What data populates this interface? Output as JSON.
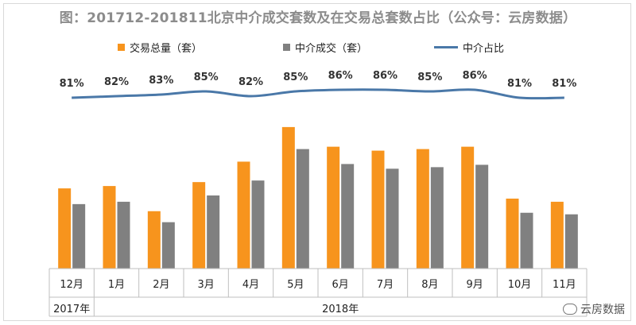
{
  "title": "图：201712-201811北京中介成交套数及在交易总套数占比（公众号：云房数据）",
  "watermark": "云房数据",
  "colors": {
    "total": "#F7941D",
    "agency": "#808080",
    "ratio": "#4A78A8",
    "title": "#8c8c8c"
  },
  "legend": {
    "total": "交易总量（套）",
    "agency": "中介成交（套）",
    "ratio": "中介占比"
  },
  "chart_data": {
    "type": "bar",
    "title": "图：201712-201811北京中介成交套数及在交易总套数占比（公众号：云房数据）",
    "categories": [
      "12月",
      "1月",
      "2月",
      "3月",
      "4月",
      "5月",
      "6月",
      "7月",
      "8月",
      "9月",
      "10月",
      "11月"
    ],
    "year_groups": [
      {
        "label": "2017年",
        "count": 1
      },
      {
        "label": "2018年",
        "count": 11
      }
    ],
    "series": [
      {
        "name": "交易总量（套）",
        "type": "bar",
        "values": [
          102,
          105,
          73,
          110,
          136,
          180,
          155,
          150,
          152,
          155,
          89,
          85
        ]
      },
      {
        "name": "中介成交（套）",
        "type": "bar",
        "values": [
          82,
          85,
          59,
          93,
          112,
          152,
          133,
          127,
          129,
          132,
          71,
          69
        ]
      },
      {
        "name": "中介占比",
        "type": "line",
        "values": [
          81,
          82,
          83,
          85,
          82,
          85,
          86,
          86,
          85,
          86,
          81,
          81
        ],
        "labels": [
          "81%",
          "82%",
          "83%",
          "85%",
          "82%",
          "85%",
          "86%",
          "86%",
          "85%",
          "86%",
          "81%",
          "81%"
        ]
      }
    ],
    "ylim": [
      0,
      190
    ],
    "ratio_ylim": [
      60,
      95
    ]
  }
}
